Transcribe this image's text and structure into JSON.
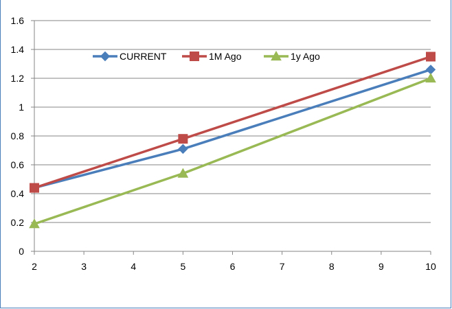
{
  "chart_data": {
    "type": "line",
    "title": "",
    "xlabel": "",
    "ylabel": "",
    "x": [
      2,
      5,
      10
    ],
    "xlim": [
      2,
      10
    ],
    "ylim": [
      0,
      1.6
    ],
    "x_ticks": [
      "2",
      "3",
      "4",
      "5",
      "6",
      "7",
      "8",
      "9",
      "10"
    ],
    "y_ticks": [
      "0",
      "0.2",
      "0.4",
      "0.6",
      "0.8",
      "1",
      "1.2",
      "1.4",
      "1.6"
    ],
    "grid": "horizontal",
    "legend_position": "top",
    "series": [
      {
        "name": "CURRENT",
        "values": [
          0.44,
          0.71,
          1.26
        ],
        "color": "#4a7ebb",
        "marker": "diamond"
      },
      {
        "name": "1M Ago",
        "values": [
          0.44,
          0.78,
          1.35
        ],
        "color": "#be4b48",
        "marker": "square"
      },
      {
        "name": "1y Ago",
        "values": [
          0.19,
          0.54,
          1.2
        ],
        "color": "#98b954",
        "marker": "triangle"
      }
    ]
  }
}
